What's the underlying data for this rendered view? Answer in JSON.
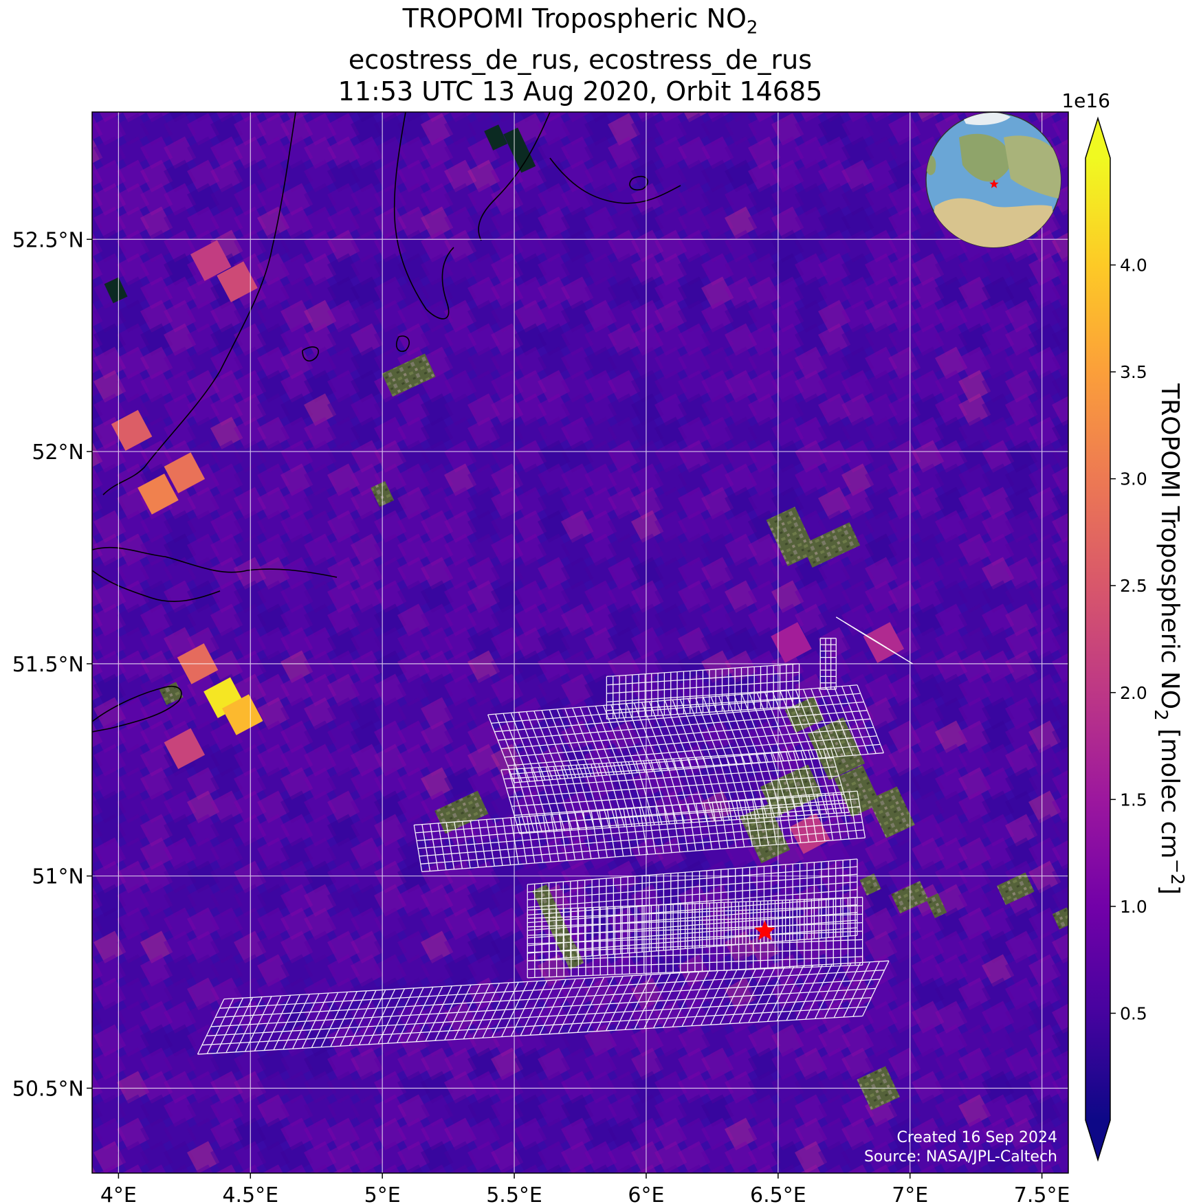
{
  "title": {
    "line1_main": "TROPOMI Tropospheric NO",
    "line1_sub": "2",
    "line2": "ecostress_de_rus, ecostress_de_rus",
    "line3": "11:53 UTC 13 Aug 2020, Orbit 14685"
  },
  "map": {
    "lon_range": [
      3.9,
      7.6
    ],
    "lat_range": [
      50.3,
      52.8
    ],
    "lon_ticks": [
      {
        "value": 4.0,
        "label": "4°E"
      },
      {
        "value": 4.5,
        "label": "4.5°E"
      },
      {
        "value": 5.0,
        "label": "5°E"
      },
      {
        "value": 5.5,
        "label": "5.5°E"
      },
      {
        "value": 6.0,
        "label": "6°E"
      },
      {
        "value": 6.5,
        "label": "6.5°E"
      },
      {
        "value": 7.0,
        "label": "7°E"
      },
      {
        "value": 7.5,
        "label": "7.5°E"
      }
    ],
    "lat_ticks": [
      {
        "value": 52.5,
        "label": "52.5°N"
      },
      {
        "value": 52.0,
        "label": "52°N"
      },
      {
        "value": 51.5,
        "label": "51.5°N"
      },
      {
        "value": 51.0,
        "label": "51°N"
      },
      {
        "value": 50.5,
        "label": "50.5°N"
      }
    ],
    "target_marker": {
      "lon": 6.45,
      "lat": 50.87,
      "color": "#ff0000",
      "icon": "red-star-icon"
    },
    "background_color": "#3a0aa6",
    "hotspots": [
      {
        "lon": 4.4,
        "lat": 51.42,
        "value": 4.3
      },
      {
        "lon": 4.47,
        "lat": 51.38,
        "value": 3.8
      },
      {
        "lon": 4.3,
        "lat": 51.5,
        "value": 2.8
      },
      {
        "lon": 4.25,
        "lat": 51.3,
        "value": 2.2
      },
      {
        "lon": 4.25,
        "lat": 51.95,
        "value": 2.9
      },
      {
        "lon": 4.15,
        "lat": 51.9,
        "value": 3.1
      },
      {
        "lon": 4.05,
        "lat": 52.05,
        "value": 2.6
      },
      {
        "lon": 4.45,
        "lat": 52.4,
        "value": 2.3
      },
      {
        "lon": 4.35,
        "lat": 52.45,
        "value": 2.1
      },
      {
        "lon": 6.62,
        "lat": 51.1,
        "value": 2.0
      },
      {
        "lon": 6.9,
        "lat": 51.55,
        "value": 1.8
      },
      {
        "lon": 6.55,
        "lat": 51.55,
        "value": 1.6
      }
    ],
    "rgb_patches": [
      {
        "lon": 5.1,
        "lat": 52.18,
        "w": 0.18,
        "h": 0.06
      },
      {
        "lon": 5.0,
        "lat": 51.9,
        "w": 0.06,
        "h": 0.05
      },
      {
        "lon": 6.55,
        "lat": 51.8,
        "w": 0.12,
        "h": 0.12
      },
      {
        "lon": 6.7,
        "lat": 51.78,
        "w": 0.2,
        "h": 0.06
      },
      {
        "lon": 6.6,
        "lat": 51.38,
        "w": 0.12,
        "h": 0.06
      },
      {
        "lon": 6.72,
        "lat": 51.3,
        "w": 0.15,
        "h": 0.12
      },
      {
        "lon": 6.55,
        "lat": 51.2,
        "w": 0.2,
        "h": 0.08
      },
      {
        "lon": 6.45,
        "lat": 51.1,
        "w": 0.12,
        "h": 0.12
      },
      {
        "lon": 6.8,
        "lat": 51.2,
        "w": 0.12,
        "h": 0.1
      },
      {
        "lon": 6.93,
        "lat": 51.15,
        "w": 0.12,
        "h": 0.1
      },
      {
        "lon": 5.3,
        "lat": 51.15,
        "w": 0.18,
        "h": 0.06
      },
      {
        "lon": 5.65,
        "lat": 50.9,
        "w": 0.06,
        "h": 0.16
      },
      {
        "lon": 5.72,
        "lat": 50.81,
        "w": 0.06,
        "h": 0.05
      },
      {
        "lon": 4.2,
        "lat": 51.43,
        "w": 0.07,
        "h": 0.04
      },
      {
        "lon": 6.85,
        "lat": 50.98,
        "w": 0.06,
        "h": 0.04
      },
      {
        "lon": 7.0,
        "lat": 50.95,
        "w": 0.12,
        "h": 0.05
      },
      {
        "lon": 7.1,
        "lat": 50.93,
        "w": 0.05,
        "h": 0.05
      },
      {
        "lon": 7.4,
        "lat": 50.97,
        "w": 0.12,
        "h": 0.05
      },
      {
        "lon": 7.58,
        "lat": 50.9,
        "w": 0.06,
        "h": 0.04
      },
      {
        "lon": 6.88,
        "lat": 50.5,
        "w": 0.12,
        "h": 0.08
      }
    ],
    "dark_patches": [
      {
        "lon": 5.43,
        "lat": 52.74,
        "w": 0.06,
        "h": 0.05
      },
      {
        "lon": 5.52,
        "lat": 52.71,
        "w": 0.06,
        "h": 0.1
      },
      {
        "lon": 3.99,
        "lat": 52.38,
        "w": 0.06,
        "h": 0.05
      }
    ]
  },
  "colorbar": {
    "scale_label": "1e16",
    "label_main": "TROPOMI Tropospheric NO",
    "label_sub": "2",
    "label_units": " [molec cm",
    "label_exp": "−2",
    "label_close": "]",
    "vmin": 0.0,
    "vmax": 4.5,
    "ticks": [
      {
        "value": 0.5,
        "label": "0.5"
      },
      {
        "value": 1.0,
        "label": "1.0"
      },
      {
        "value": 1.5,
        "label": "1.5"
      },
      {
        "value": 2.0,
        "label": "2.0"
      },
      {
        "value": 2.5,
        "label": "2.5"
      },
      {
        "value": 3.0,
        "label": "3.0"
      },
      {
        "value": 3.5,
        "label": "3.5"
      },
      {
        "value": 4.0,
        "label": "4.0"
      }
    ],
    "colors": [
      "#0d0887",
      "#46039f",
      "#7201a8",
      "#9c179e",
      "#bd3786",
      "#d8576b",
      "#ed7953",
      "#fb9f3a",
      "#fdca26",
      "#f0f921"
    ]
  },
  "globe": {
    "ocean_color": "#6aa6d6",
    "land_color": "#c9b98a",
    "marker_icon": "red-star-icon"
  },
  "credits": {
    "created": "Created 16 Sep 2024",
    "source": "Source: NASA/JPL-Caltech"
  }
}
